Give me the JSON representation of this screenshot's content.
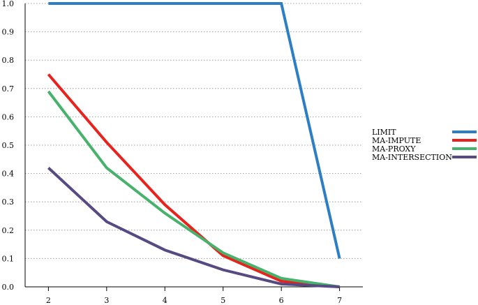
{
  "chart_data": {
    "type": "line",
    "title": "",
    "xlabel": "",
    "ylabel": "",
    "x": [
      2,
      3,
      4,
      5,
      6,
      7
    ],
    "xlim": [
      1.6,
      7.4
    ],
    "ylim": [
      0.0,
      1.0
    ],
    "x_ticks": [
      "2",
      "3",
      "4",
      "5",
      "6",
      "7"
    ],
    "y_ticks": [
      "0.0",
      "0.1",
      "0.2",
      "0.3",
      "0.4",
      "0.5",
      "0.6",
      "0.7",
      "0.8",
      "0.9",
      "1.0"
    ],
    "grid": "horizontal dotted",
    "legend_position": "right",
    "series": [
      {
        "name": "LIMIT",
        "color": "#2e7ec3",
        "values": [
          1.0,
          1.0,
          1.0,
          1.0,
          1.0,
          0.1
        ]
      },
      {
        "name": "MA-IMPUTE",
        "color": "#e8221c",
        "values": [
          0.75,
          0.51,
          0.29,
          0.11,
          0.02,
          0.0
        ]
      },
      {
        "name": "MA-PROXY",
        "color": "#46b26b",
        "values": [
          0.69,
          0.42,
          0.26,
          0.12,
          0.03,
          0.0
        ]
      },
      {
        "name": "MA-INTERSECTION",
        "color": "#574a82",
        "values": [
          0.42,
          0.23,
          0.13,
          0.06,
          0.01,
          0.0
        ]
      }
    ]
  }
}
